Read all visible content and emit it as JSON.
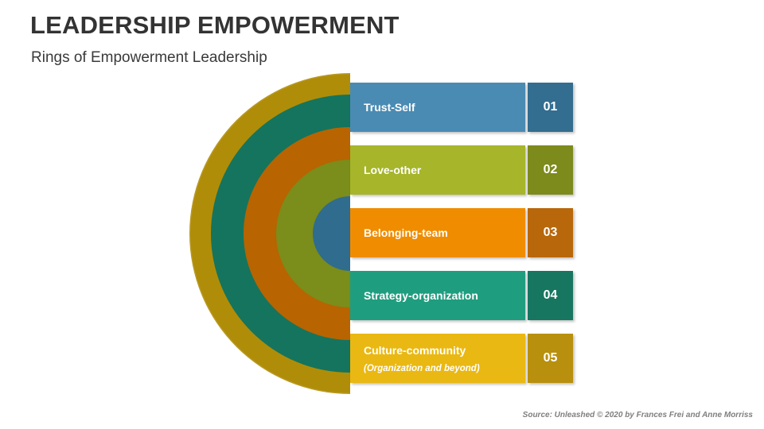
{
  "header": {
    "title": "LEADERSHIP EMPOWERMENT",
    "subtitle": "Rings of Empowerment Leadership"
  },
  "rings": [
    {
      "level": "Trust-Self",
      "fill": "#2f6c8e"
    },
    {
      "level": "Love-other",
      "fill": "#7b8d1a"
    },
    {
      "level": "Belonging-team",
      "fill": "#b86400"
    },
    {
      "level": "Strategy-organization",
      "fill": "#15745d"
    },
    {
      "level": "Culture-community",
      "fill": "#b08d08"
    }
  ],
  "items": [
    {
      "label": "Trust-Self",
      "number": "01",
      "color": "#4a8bb3",
      "num_color": "#336d90"
    },
    {
      "label": "Love-other",
      "number": "02",
      "color": "#a6b52a",
      "num_color": "#7d8a1c"
    },
    {
      "label": "Belonging-team",
      "number": "03",
      "color": "#f08c00",
      "num_color": "#b8670a"
    },
    {
      "label": "Strategy-organization",
      "number": "04",
      "color": "#1f9d7f",
      "num_color": "#177660"
    },
    {
      "label": "Culture-community",
      "sublabel": "(Organization and beyond)",
      "number": "05",
      "color": "#eab812",
      "num_color": "#b8900e"
    }
  ],
  "source": "Source: Unleashed © 2020 by Frances Frei and Anne Morriss"
}
